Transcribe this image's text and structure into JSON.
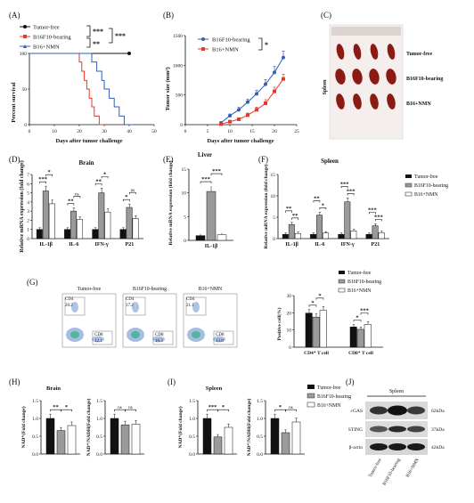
{
  "colors": {
    "black": "#111111",
    "red": "#e53a2b",
    "blue": "#2f5fb8",
    "gray": "#9a9a9a",
    "white": "#ffffff",
    "spleen": "#8b1a14"
  },
  "panels": {
    "A": "(A)",
    "B": "(B)",
    "C": "(C)",
    "D": "(D)",
    "E": "(E)",
    "F": "(F)",
    "G": "(G)",
    "H": "(H)",
    "I": "(I)",
    "J": "(J)"
  },
  "groups": {
    "tf": "Tumor-free",
    "b16": "B16F10-bearing",
    "nmn": "B16+NMN"
  },
  "panelA": {
    "ylabel": "Percent survival",
    "xlabel": "Days after tumor challenge",
    "sig_top": "***",
    "sig_bottom": "**",
    "sig_right": "***",
    "chart_data": {
      "type": "line",
      "xlim": [
        0,
        50
      ],
      "ylim": [
        0,
        100
      ],
      "xticks": [
        "0",
        "10",
        "20",
        "30",
        "40",
        "50"
      ],
      "yticks": [
        "0",
        "50",
        "100"
      ],
      "series": [
        {
          "name": "Tumor-free",
          "steps": [
            [
              0,
              100
            ],
            [
              40,
              100
            ]
          ]
        },
        {
          "name": "B16F10-bearing",
          "steps": [
            [
              0,
              100
            ],
            [
              20,
              100
            ],
            [
              20,
              88
            ],
            [
              21,
              88
            ],
            [
              21,
              75
            ],
            [
              22,
              75
            ],
            [
              22,
              62
            ],
            [
              23,
              62
            ],
            [
              23,
              50
            ],
            [
              24,
              50
            ],
            [
              24,
              37
            ],
            [
              25,
              37
            ],
            [
              25,
              25
            ],
            [
              26,
              25
            ],
            [
              26,
              12
            ],
            [
              28,
              12
            ],
            [
              28,
              0
            ],
            [
              30,
              0
            ]
          ]
        },
        {
          "name": "B16+NMN",
          "steps": [
            [
              0,
              100
            ],
            [
              25,
              100
            ],
            [
              25,
              88
            ],
            [
              27,
              88
            ],
            [
              27,
              75
            ],
            [
              29,
              75
            ],
            [
              29,
              62
            ],
            [
              30,
              62
            ],
            [
              30,
              50
            ],
            [
              32,
              50
            ],
            [
              32,
              37
            ],
            [
              34,
              37
            ],
            [
              34,
              25
            ],
            [
              36,
              25
            ],
            [
              36,
              12
            ],
            [
              38,
              12
            ],
            [
              38,
              0
            ],
            [
              42,
              0
            ]
          ]
        }
      ]
    }
  },
  "panelB": {
    "ylabel": "Tumor size (mm³)",
    "xlabel": "Days after tumor challenge",
    "sig": "*",
    "chart_data": {
      "type": "line",
      "xlim": [
        0,
        25
      ],
      "ylim": [
        0,
        1500
      ],
      "xticks": [
        "0",
        "5",
        "10",
        "15",
        "20",
        "25"
      ],
      "yticks": [
        "0",
        "500",
        "1000",
        "1500"
      ],
      "x": [
        8,
        10,
        12,
        14,
        16,
        18,
        20,
        22
      ],
      "series": [
        {
          "name": "B16F10-bearing",
          "values": [
            30,
            150,
            250,
            380,
            520,
            680,
            880,
            1130
          ],
          "err": [
            10,
            30,
            40,
            50,
            60,
            80,
            100,
            110
          ]
        },
        {
          "name": "B16+NMN",
          "values": [
            10,
            50,
            90,
            160,
            250,
            360,
            560,
            770
          ],
          "err": [
            5,
            15,
            25,
            35,
            45,
            60,
            70,
            80
          ]
        }
      ]
    }
  },
  "panelC": {
    "side_label": "Spleen",
    "rows": [
      "Tumor-free",
      "B16F10-bearing",
      "B16+NMN"
    ]
  },
  "panelD": {
    "title": "Brain",
    "ylabel": "Relative mRNA expression (fold change)",
    "chart_data": {
      "type": "bar",
      "ylim": [
        0,
        7
      ],
      "yticks": [
        "0",
        "1",
        "2",
        "3",
        "4",
        "5",
        "6",
        "7"
      ],
      "categories": [
        "IL-1β",
        "IL-6",
        "IFN-γ",
        "P21"
      ],
      "series": [
        {
          "name": "Tumor-free",
          "values": [
            1,
            1,
            1,
            1
          ]
        },
        {
          "name": "B16F10-bearing",
          "values": [
            5.2,
            3.0,
            5.0,
            3.4
          ]
        },
        {
          "name": "B16+NMN",
          "values": [
            3.8,
            2.1,
            2.9,
            2.2
          ]
        }
      ],
      "sig": [
        [
          "***",
          "*"
        ],
        [
          "**",
          "ns"
        ],
        [
          "**",
          "*"
        ],
        [
          "*",
          "ns"
        ]
      ]
    }
  },
  "panelE": {
    "title": "Liver",
    "ylabel": "Relative mRNA expression (fold change)",
    "sig1": "***",
    "sig2": "***",
    "chart_data": {
      "type": "bar",
      "ylim": [
        0,
        15
      ],
      "yticks": [
        "0",
        "5",
        "10",
        "15"
      ],
      "categories": [
        "IL-1β"
      ],
      "series": [
        {
          "name": "Tumor-free",
          "values": [
            1
          ]
        },
        {
          "name": "B16F10-bearing",
          "values": [
            10.3
          ]
        },
        {
          "name": "B16+NMN",
          "values": [
            1.2
          ]
        }
      ]
    }
  },
  "panelF": {
    "title": "Spleen",
    "ylabel": "Relative mRNA expression (fold change)",
    "chart_data": {
      "type": "bar",
      "ylim": [
        0,
        15
      ],
      "yticks": [
        "0",
        "5",
        "10",
        "15"
      ],
      "categories": [
        "IL-1β",
        "IL-6",
        "IFN-γ",
        "P21"
      ],
      "series": [
        {
          "name": "Tumor-free",
          "values": [
            1,
            1,
            1,
            1
          ]
        },
        {
          "name": "B16F10-bearing",
          "values": [
            3.3,
            5.5,
            8.6,
            3.0
          ]
        },
        {
          "name": "B16+NMN",
          "values": [
            1.2,
            1.3,
            1.8,
            1.4
          ]
        }
      ],
      "sig": [
        [
          "**",
          "**"
        ],
        [
          "**",
          "*"
        ],
        [
          "***",
          "***"
        ],
        [
          "***",
          "***"
        ]
      ]
    }
  },
  "panelG": {
    "flow": [
      {
        "title": "Tumor-free",
        "cd4": "CD4",
        "cd4_val": "20.2",
        "cd8": "CD8",
        "cd8_val": "12.1"
      },
      {
        "title": "B16F10-bearing",
        "cd4": "CD4",
        "cd4_val": "17.2",
        "cd8": "CD8",
        "cd8_val": "10.3"
      },
      {
        "title": "B16+NMN",
        "cd4": "CD4",
        "cd4_val": "21.1",
        "cd8": "CD8",
        "cd8_val": "13.0"
      }
    ],
    "ylabel": "Positive cell(%)",
    "chart_data": {
      "type": "bar",
      "ylim": [
        0,
        30
      ],
      "yticks": [
        "0",
        "10",
        "20",
        "30"
      ],
      "categories": [
        "CD4⁺ T cell",
        "CD8⁺ T cell"
      ],
      "series": [
        {
          "name": "Tumor-free",
          "values": [
            19.8,
            11.8
          ]
        },
        {
          "name": "B16F10-bearing",
          "values": [
            17.5,
            10.4
          ]
        },
        {
          "name": "B16+NMN",
          "values": [
            21.5,
            13.3
          ]
        }
      ],
      "sig": [
        [
          "*",
          "*"
        ],
        [
          "*",
          "***"
        ]
      ]
    }
  },
  "panelH": {
    "title": "Brain",
    "chart_data": [
      {
        "type": "bar",
        "ylabel": "NAD⁺(Fold change)",
        "ylim": [
          0,
          1.5
        ],
        "yticks": [
          "0.0",
          "0.5",
          "1.0",
          "1.5"
        ],
        "series": [
          {
            "name": "Tumor-free",
            "values": [
              1.0
            ]
          },
          {
            "name": "B16F10-bearing",
            "values": [
              0.66
            ]
          },
          {
            "name": "B16+NMN",
            "values": [
              0.8
            ]
          }
        ],
        "sig": [
          "**",
          "*"
        ]
      },
      {
        "type": "bar",
        "ylabel": "NAD⁺/NADH(Fold change)",
        "ylim": [
          0,
          1.5
        ],
        "yticks": [
          "0.0",
          "0.5",
          "1.0",
          "1.5"
        ],
        "series": [
          {
            "name": "Tumor-free",
            "values": [
              1.0
            ]
          },
          {
            "name": "B16F10-bearing",
            "values": [
              0.82
            ]
          },
          {
            "name": "B16+NMN",
            "values": [
              0.84
            ]
          }
        ],
        "sig": [
          "ns",
          "ns"
        ]
      }
    ]
  },
  "panelI": {
    "title": "Spleen",
    "chart_data": [
      {
        "type": "bar",
        "ylabel": "NAD⁺(Fold change)",
        "ylim": [
          0,
          1.5
        ],
        "yticks": [
          "0.0",
          "0.5",
          "1.0",
          "1.5"
        ],
        "series": [
          {
            "name": "Tumor-free",
            "values": [
              1.0
            ]
          },
          {
            "name": "B16F10-bearing",
            "values": [
              0.48
            ]
          },
          {
            "name": "B16+NMN",
            "values": [
              0.75
            ]
          }
        ],
        "sig": [
          "***",
          "*"
        ]
      },
      {
        "type": "bar",
        "ylabel": "NAD⁺/NADH(Fold change)",
        "ylim": [
          0,
          1.5
        ],
        "yticks": [
          "0.0",
          "0.5",
          "1.0",
          "1.5"
        ],
        "series": [
          {
            "name": "Tumor-free",
            "values": [
              1.0
            ]
          },
          {
            "name": "B16F10-bearing",
            "values": [
              0.6
            ]
          },
          {
            "name": "B16+NMN",
            "values": [
              0.9
            ]
          }
        ],
        "sig": [
          "*",
          "ns"
        ]
      }
    ]
  },
  "panelJ": {
    "header": "Spleen",
    "bands": [
      {
        "name": "cGAS",
        "kda": "62kDa"
      },
      {
        "name": "STING",
        "kda": "37kDa"
      },
      {
        "name": "β-actin",
        "kda": "42kDa"
      }
    ],
    "lanes": [
      "Tumor-free",
      "B16F10-bearing",
      "B16+NMN"
    ]
  }
}
